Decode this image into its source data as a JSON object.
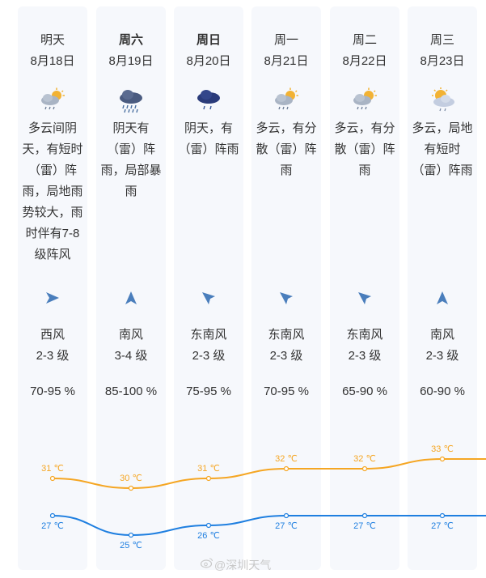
{
  "days": [
    {
      "day": "明天",
      "date": "8月18日",
      "bold": false,
      "weather_icon": "cloud-sun-rain-icon",
      "desc": "多云间阴天，有短时（雷）阵雨，局地雨势较大，雨时伴有7-8级阵风",
      "wind_icon": "wind-arrow-east-icon",
      "wind_dir": "西风",
      "wind_level": "2-3 级",
      "humidity": "70-95 %",
      "high": "31 ℃",
      "low": "27 ℃"
    },
    {
      "day": "周六",
      "date": "8月19日",
      "bold": true,
      "weather_icon": "heavy-rain-icon",
      "desc": "阴天有（雷）阵雨，局部暴雨",
      "wind_icon": "wind-arrow-north-icon",
      "wind_dir": "南风",
      "wind_level": "3-4 级",
      "humidity": "85-100 %",
      "high": "30 ℃",
      "low": "25 ℃"
    },
    {
      "day": "周日",
      "date": "8月20日",
      "bold": true,
      "weather_icon": "rain-cloud-icon",
      "desc": "阴天，有（雷）阵雨",
      "wind_icon": "wind-arrow-northwest-icon",
      "wind_dir": "东南风",
      "wind_level": "2-3 级",
      "humidity": "75-95 %",
      "high": "31 ℃",
      "low": "26 ℃"
    },
    {
      "day": "周一",
      "date": "8月21日",
      "bold": false,
      "weather_icon": "cloud-sun-rain-icon",
      "desc": "多云，有分散（雷）阵雨",
      "wind_icon": "wind-arrow-northwest-icon",
      "wind_dir": "东南风",
      "wind_level": "2-3 级",
      "humidity": "70-95 %",
      "high": "32 ℃",
      "low": "27 ℃"
    },
    {
      "day": "周二",
      "date": "8月22日",
      "bold": false,
      "weather_icon": "cloud-sun-rain-icon",
      "desc": "多云，有分散（雷）阵雨",
      "wind_icon": "wind-arrow-northwest-icon",
      "wind_dir": "东南风",
      "wind_level": "2-3 级",
      "humidity": "65-90 %",
      "high": "32 ℃",
      "low": "27 ℃"
    },
    {
      "day": "周三",
      "date": "8月23日",
      "bold": false,
      "weather_icon": "sun-cloud-rain-icon",
      "desc": "多云，局地有短时（雷）阵雨",
      "wind_icon": "wind-arrow-north-icon",
      "wind_dir": "南风",
      "wind_level": "2-3 级",
      "humidity": "60-90 %",
      "high": "33 ℃",
      "low": "27 ℃"
    }
  ],
  "temps": {
    "high": [
      31,
      30,
      31,
      32,
      32,
      33
    ],
    "low": [
      27,
      25,
      26,
      27,
      27,
      27
    ],
    "high_color": "#f5a623",
    "low_color": "#1f7fe0"
  },
  "watermark": "@深圳天气"
}
